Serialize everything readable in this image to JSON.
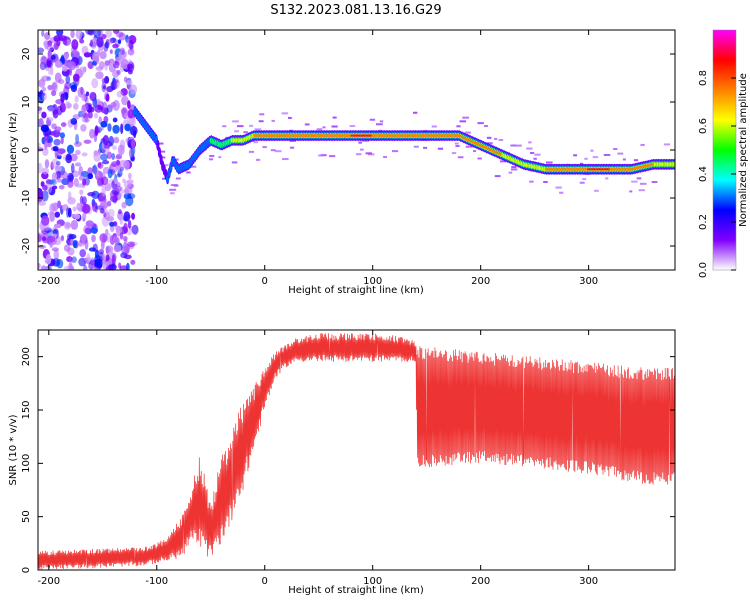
{
  "figure": {
    "title": "S132.2023.081.13.16.G29"
  },
  "chart_data": [
    {
      "type": "heatmap",
      "title": "",
      "xlabel": "Height of straight line (km)",
      "ylabel": "Frequency (Hz)",
      "xlim": [
        -210,
        380
      ],
      "ylim": [
        -25,
        25
      ],
      "xticks": [
        -200,
        -100,
        0,
        100,
        200,
        300
      ],
      "yticks": [
        -20,
        -10,
        0,
        10,
        20
      ],
      "grid": false,
      "colorbar": {
        "label": "Normalized spectral amplitude",
        "range": [
          0,
          1
        ],
        "ticks": [
          0.0,
          0.2,
          0.4,
          0.6,
          0.8
        ],
        "colors": [
          "#ffffff",
          "#8000ff",
          "#0000ff",
          "#00ffff",
          "#00ff00",
          "#ffff00",
          "#ff8000",
          "#ff0000",
          "#ff00ff"
        ]
      },
      "ridge": {
        "x": [
          -120,
          -110,
          -100,
          -95,
          -90,
          -85,
          -80,
          -70,
          -60,
          -50,
          -40,
          -30,
          -20,
          -10,
          0,
          20,
          40,
          60,
          80,
          100,
          120,
          140,
          160,
          180,
          200,
          220,
          240,
          260,
          280,
          300,
          320,
          340,
          360,
          380
        ],
        "y": [
          8,
          5,
          2,
          -3,
          -6,
          -2,
          -4,
          -3,
          0,
          2,
          1,
          2,
          2,
          3,
          3,
          3,
          3,
          3,
          3,
          3,
          3,
          3,
          3,
          3,
          1,
          -1,
          -3,
          -4,
          -4,
          -4,
          -4,
          -4,
          -3,
          -3
        ],
        "amplitude": [
          0.3,
          0.3,
          0.3,
          0.25,
          0.3,
          0.3,
          0.3,
          0.35,
          0.4,
          0.45,
          0.5,
          0.6,
          0.7,
          0.75,
          0.75,
          0.85,
          0.85,
          0.85,
          0.9,
          0.9,
          0.75,
          0.75,
          0.8,
          0.85,
          0.8,
          0.75,
          0.7,
          0.75,
          0.85,
          0.9,
          0.9,
          0.8,
          0.75,
          0.7
        ]
      },
      "noise_region": {
        "x": [
          -210,
          -120
        ],
        "y": [
          -25,
          25
        ],
        "amplitude_range": [
          0.05,
          0.3
        ]
      }
    },
    {
      "type": "line",
      "title": "",
      "xlabel": "Height of straight line (km)",
      "ylabel": "SNR (10 * v/v)",
      "xlim": [
        -210,
        380
      ],
      "ylim": [
        0,
        225
      ],
      "xticks": [
        -200,
        -100,
        0,
        100,
        200,
        300
      ],
      "yticks": [
        0,
        50,
        100,
        150,
        200
      ],
      "grid": false,
      "series": [
        {
          "color": "#ee3333",
          "envelope": {
            "x": [
              -210,
              -150,
              -110,
              -90,
              -75,
              -70,
              -60,
              -50,
              -40,
              -30,
              -20,
              -10,
              0,
              10,
              20,
              30,
              50,
              80,
              100,
              120,
              140,
              141,
              200,
              250,
              300,
              350,
              380
            ],
            "low": [
              0,
              2,
              4,
              8,
              12,
              25,
              18,
              10,
              25,
              45,
              75,
              110,
              150,
              180,
              190,
              195,
              195,
              195,
              195,
              195,
              195,
              95,
              100,
              95,
              90,
              80,
              80
            ],
            "high": [
              18,
              20,
              22,
              30,
              55,
              70,
              110,
              60,
              110,
              130,
              160,
              175,
              190,
              205,
              212,
              218,
              222,
              222,
              222,
              220,
              215,
              210,
              205,
              200,
              195,
              190,
              190
            ]
          }
        }
      ]
    }
  ]
}
